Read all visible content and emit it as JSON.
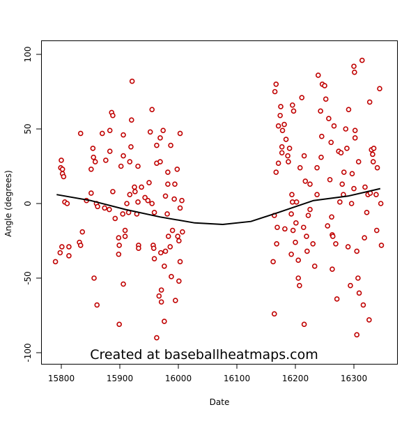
{
  "chart_data": {
    "type": "scatter",
    "title": "",
    "xlabel": "Date",
    "ylabel": "Angle (degrees)",
    "xlim": [
      15765,
      16372
    ],
    "ylim": [
      -109,
      109
    ],
    "x_ticks": [
      15800,
      15900,
      16000,
      16100,
      16200,
      16300
    ],
    "y_ticks": [
      -100,
      -50,
      0,
      50,
      100
    ],
    "grid": false,
    "watermark": "Created at baseballheatmaps.com",
    "colors": {
      "points": "#c00000",
      "trend": "#000000"
    },
    "series": [
      {
        "name": "points",
        "points": [
          [
            15790,
            -39
          ],
          [
            15798,
            -33
          ],
          [
            15801,
            -29
          ],
          [
            15799,
            24
          ],
          [
            15800,
            29
          ],
          [
            15802,
            23
          ],
          [
            15802,
            20
          ],
          [
            15804,
            18
          ],
          [
            15806,
            1
          ],
          [
            15810,
            0
          ],
          [
            15813,
            -29
          ],
          [
            15813,
            -35
          ],
          [
            15831,
            -26
          ],
          [
            15833,
            -28
          ],
          [
            15836,
            -19
          ],
          [
            15833,
            47
          ],
          [
            15843,
            2
          ],
          [
            15851,
            7
          ],
          [
            15851,
            23
          ],
          [
            15854,
            37
          ],
          [
            15855,
            31
          ],
          [
            15856,
            -50
          ],
          [
            15858,
            28
          ],
          [
            15861,
            -68
          ],
          [
            15860,
            0
          ],
          [
            15862,
            -2
          ],
          [
            15870,
            47
          ],
          [
            15874,
            -3
          ],
          [
            15876,
            29
          ],
          [
            15883,
            35
          ],
          [
            15883,
            49
          ],
          [
            15886,
            61
          ],
          [
            15888,
            59
          ],
          [
            15882,
            -4
          ],
          [
            15888,
            8
          ],
          [
            15892,
            -10
          ],
          [
            15898,
            -23
          ],
          [
            15899,
            -28
          ],
          [
            15898,
            -34
          ],
          [
            15899,
            -81
          ],
          [
            15902,
            25
          ],
          [
            15906,
            32
          ],
          [
            15906,
            46
          ],
          [
            15905,
            -7
          ],
          [
            15906,
            -54
          ],
          [
            15909,
            -18
          ],
          [
            15909,
            -22
          ],
          [
            15912,
            0
          ],
          [
            15915,
            -6
          ],
          [
            15917,
            6
          ],
          [
            15917,
            28
          ],
          [
            15920,
            56
          ],
          [
            15919,
            38
          ],
          [
            15921,
            82
          ],
          [
            15925,
            11
          ],
          [
            15926,
            8
          ],
          [
            15929,
            -7
          ],
          [
            15931,
            1
          ],
          [
            15931,
            25
          ],
          [
            15932,
            -28
          ],
          [
            15932,
            -30
          ],
          [
            15937,
            11
          ],
          [
            15943,
            4
          ],
          [
            15948,
            2
          ],
          [
            15950,
            14
          ],
          [
            15952,
            48
          ],
          [
            15955,
            0
          ],
          [
            15955,
            63
          ],
          [
            15957,
            -28
          ],
          [
            15958,
            -30
          ],
          [
            15959,
            -37
          ],
          [
            15959,
            -6
          ],
          [
            15963,
            39
          ],
          [
            15963,
            27
          ],
          [
            15967,
            -62
          ],
          [
            15969,
            28
          ],
          [
            15969,
            44
          ],
          [
            15970,
            -33
          ],
          [
            15971,
            -58
          ],
          [
            15971,
            -66
          ],
          [
            15974,
            49
          ],
          [
            15976,
            -42
          ],
          [
            15978,
            -32
          ],
          [
            15978,
            5
          ],
          [
            15981,
            -7
          ],
          [
            15982,
            13
          ],
          [
            15982,
            21
          ],
          [
            15983,
            -22
          ],
          [
            15987,
            39
          ],
          [
            15986,
            -29
          ],
          [
            15988,
            -49
          ],
          [
            15990,
            -18
          ],
          [
            15993,
            3
          ],
          [
            15994,
            13
          ],
          [
            15995,
            -65
          ],
          [
            15998,
            23
          ],
          [
            15999,
            -22
          ],
          [
            16001,
            -25
          ],
          [
            16003,
            -3
          ],
          [
            16003,
            47
          ],
          [
            16006,
            2
          ],
          [
            16007,
            -19
          ],
          [
            16003,
            -39
          ],
          [
            16001,
            -52
          ],
          [
            15976,
            -79
          ],
          [
            15963,
            -90
          ],
          [
            16162,
            -39
          ],
          [
            16164,
            -8
          ],
          [
            16164,
            -74
          ],
          [
            16165,
            75
          ],
          [
            16167,
            80
          ],
          [
            16167,
            21
          ],
          [
            16168,
            -27
          ],
          [
            16169,
            -16
          ],
          [
            16171,
            27
          ],
          [
            16171,
            52
          ],
          [
            16174,
            59
          ],
          [
            16175,
            65
          ],
          [
            16177,
            34
          ],
          [
            16177,
            38
          ],
          [
            16178,
            49
          ],
          [
            16181,
            53
          ],
          [
            16182,
            -17
          ],
          [
            16184,
            43
          ],
          [
            16187,
            32
          ],
          [
            16188,
            28
          ],
          [
            16190,
            37
          ],
          [
            16193,
            -34
          ],
          [
            16193,
            -7
          ],
          [
            16194,
            6
          ],
          [
            16195,
            1
          ],
          [
            16195,
            66
          ],
          [
            16196,
            -18
          ],
          [
            16197,
            62
          ],
          [
            16200,
            -26
          ],
          [
            16201,
            -13
          ],
          [
            16202,
            1
          ],
          [
            16205,
            -38
          ],
          [
            16205,
            -50
          ],
          [
            16207,
            -55
          ],
          [
            16208,
            24
          ],
          [
            16211,
            71
          ],
          [
            16214,
            -16
          ],
          [
            16215,
            -81
          ],
          [
            16215,
            32
          ],
          [
            16217,
            15
          ],
          [
            16219,
            -22
          ],
          [
            16220,
            -32
          ],
          [
            16222,
            -8
          ],
          [
            16225,
            13
          ],
          [
            16225,
            -4
          ],
          [
            16230,
            -27
          ],
          [
            16233,
            -42
          ],
          [
            16237,
            6
          ],
          [
            16237,
            24
          ],
          [
            16239,
            86
          ],
          [
            16243,
            62
          ],
          [
            16244,
            31
          ],
          [
            16245,
            45
          ],
          [
            16246,
            80
          ],
          [
            16250,
            79
          ],
          [
            16252,
            70
          ],
          [
            16255,
            -15
          ],
          [
            16257,
            57
          ],
          [
            16259,
            16
          ],
          [
            16261,
            41
          ],
          [
            16262,
            -9
          ],
          [
            16263,
            -21
          ],
          [
            16263,
            -44
          ],
          [
            16264,
            -22
          ],
          [
            16266,
            52
          ],
          [
            16269,
            -27
          ],
          [
            16271,
            -64
          ],
          [
            16274,
            35
          ],
          [
            16276,
            1
          ],
          [
            16278,
            34
          ],
          [
            16280,
            13
          ],
          [
            16282,
            6
          ],
          [
            16283,
            21
          ],
          [
            16286,
            50
          ],
          [
            16288,
            37
          ],
          [
            16290,
            -29
          ],
          [
            16291,
            63
          ],
          [
            16294,
            -55
          ],
          [
            16296,
            0
          ],
          [
            16297,
            20
          ],
          [
            16300,
            10
          ],
          [
            16302,
            49
          ],
          [
            16302,
            44
          ],
          [
            16305,
            -32
          ],
          [
            16307,
            -50
          ],
          [
            16308,
            28
          ],
          [
            16309,
            -60
          ],
          [
            16300,
            92
          ],
          [
            16301,
            88
          ],
          [
            16314,
            96
          ],
          [
            16316,
            -68
          ],
          [
            16318,
            -23
          ],
          [
            16319,
            11
          ],
          [
            16322,
            -6
          ],
          [
            16324,
            6
          ],
          [
            16327,
            68
          ],
          [
            16328,
            7
          ],
          [
            16330,
            36
          ],
          [
            16332,
            33
          ],
          [
            16333,
            28
          ],
          [
            16334,
            37
          ],
          [
            16338,
            6
          ],
          [
            16339,
            -18
          ],
          [
            16344,
            77
          ],
          [
            16347,
            -28
          ],
          [
            16326,
            -78
          ],
          [
            16305,
            -88
          ],
          [
            16346,
            0
          ],
          [
            16340,
            24
          ]
        ]
      },
      {
        "name": "trend",
        "type": "line",
        "points": [
          [
            15792,
            6
          ],
          [
            15850,
            2
          ],
          [
            15910,
            -4
          ],
          [
            15969,
            -9
          ],
          [
            16028,
            -13
          ],
          [
            16076,
            -14
          ],
          [
            16124,
            -12
          ],
          [
            16171,
            -6
          ],
          [
            16231,
            2
          ],
          [
            16290,
            5
          ],
          [
            16345,
            10
          ]
        ]
      }
    ]
  }
}
